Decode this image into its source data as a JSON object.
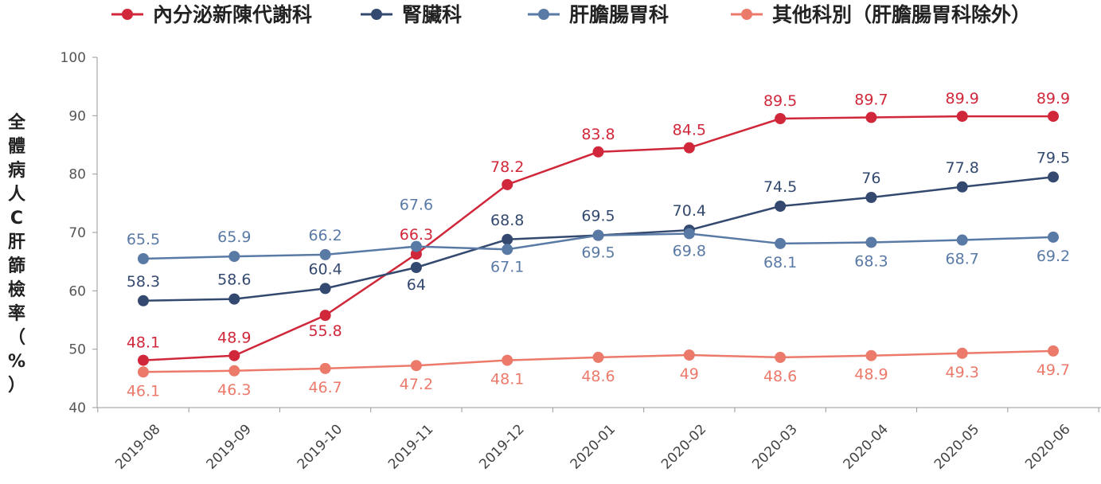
{
  "chart_data": {
    "type": "line",
    "categories": [
      "2019-08",
      "2019-09",
      "2019-10",
      "2019-11",
      "2019-12",
      "2020-01",
      "2020-02",
      "2020-03",
      "2020-04",
      "2020-05",
      "2020-06"
    ],
    "ylabel": "全體病人C肝篩檢率（%）",
    "ylabel_chars": [
      "全",
      "體",
      "病",
      "人",
      "C",
      "肝",
      "篩",
      "檢",
      "率",
      "（",
      "%",
      "）"
    ],
    "ylim": [
      40,
      100
    ],
    "yticks": [
      "40",
      "50",
      "60",
      "70",
      "80",
      "90",
      "100"
    ],
    "legend_position": "top",
    "series": [
      {
        "name": "內分泌新陳代謝科",
        "color": "#d0283a",
        "values": [
          48.1,
          48.9,
          55.8,
          66.3,
          78.2,
          83.8,
          84.5,
          89.5,
          89.7,
          89.9,
          89.9
        ],
        "labels": [
          "48.1",
          "48.9",
          "55.8",
          "66.3",
          "78.2",
          "83.8",
          "84.5",
          "89.5",
          "89.7",
          "89.9",
          "89.9"
        ]
      },
      {
        "name": "腎臟科",
        "color": "#34496f",
        "values": [
          58.3,
          58.6,
          60.4,
          64,
          68.8,
          69.5,
          70.4,
          74.5,
          76,
          77.8,
          79.5
        ],
        "labels": [
          "58.3",
          "58.6",
          "60.4",
          "64",
          "68.8",
          "69.5",
          "70.4",
          "74.5",
          "76",
          "77.8",
          "79.5"
        ]
      },
      {
        "name": "肝膽腸胃科",
        "color": "#5a7aa6",
        "values": [
          65.5,
          65.9,
          66.2,
          67.6,
          67.1,
          69.5,
          69.8,
          68.1,
          68.3,
          68.7,
          69.2
        ],
        "labels": [
          "65.5",
          "65.9",
          "66.2",
          "67.6",
          "67.1",
          "69.5",
          "69.8",
          "68.1",
          "68.3",
          "68.7",
          "69.2"
        ]
      },
      {
        "name": "其他科別（肝膽腸胃科除外）",
        "color": "#ec7a6b",
        "values": [
          46.1,
          46.3,
          46.7,
          47.2,
          48.1,
          48.6,
          49,
          48.6,
          48.9,
          49.3,
          49.7
        ],
        "labels": [
          "46.1",
          "46.3",
          "46.7",
          "47.2",
          "48.1",
          "48.6",
          "49",
          "48.6",
          "48.9",
          "49.3",
          "49.7"
        ]
      }
    ]
  }
}
